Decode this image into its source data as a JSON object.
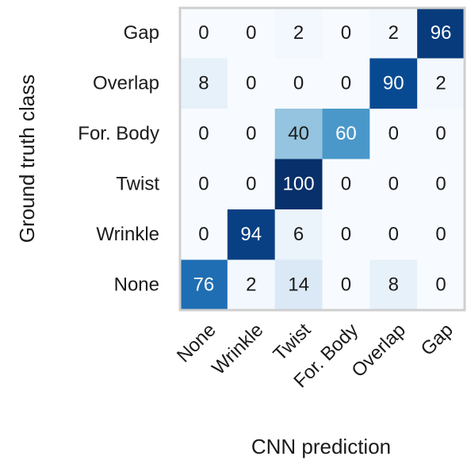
{
  "chart_data": {
    "type": "heatmap",
    "x_label": "CNN prediction",
    "y_label": "Ground truth class",
    "x_categories": [
      "None",
      "Wrinkle",
      "Twist",
      "For. Body",
      "Overlap",
      "Gap"
    ],
    "y_categories": [
      "Gap",
      "Overlap",
      "For. Body",
      "Twist",
      "Wrinkle",
      "None"
    ],
    "values": [
      [
        0,
        0,
        2,
        0,
        2,
        96
      ],
      [
        8,
        0,
        0,
        0,
        90,
        2
      ],
      [
        0,
        0,
        40,
        60,
        0,
        0
      ],
      [
        0,
        0,
        100,
        0,
        0,
        0
      ],
      [
        0,
        94,
        6,
        0,
        0,
        0
      ],
      [
        76,
        2,
        14,
        0,
        8,
        0
      ]
    ],
    "colormap": "Blues"
  }
}
